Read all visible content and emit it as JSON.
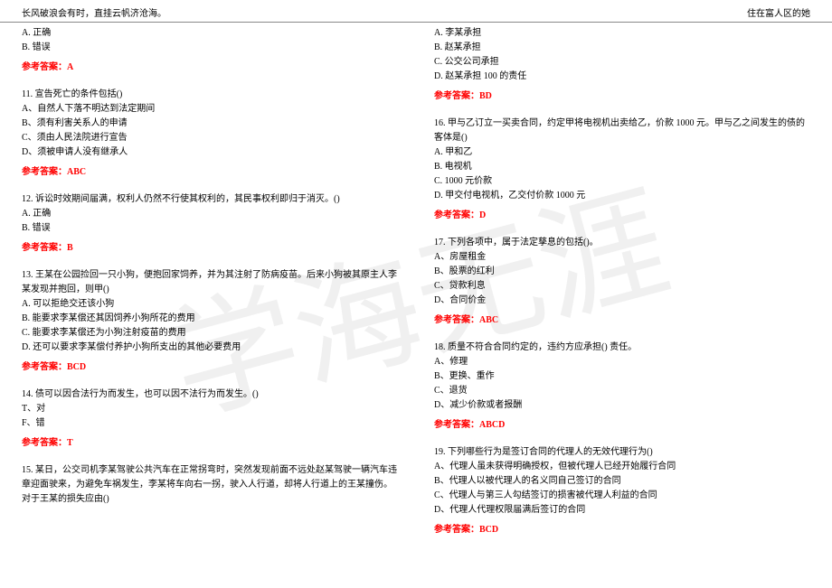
{
  "header": {
    "left": "长风破浪会有时，直挂云帆济沧海。",
    "right": "住在富人区的她"
  },
  "watermark": "学海无涯",
  "colors": {
    "answer": "#ff0000",
    "text": "#000000",
    "watermark": "#f0f0f0",
    "divider": "#888888",
    "background": "#ffffff"
  },
  "left_col": [
    {
      "opts": [
        "A. 正确",
        "B. 错误"
      ],
      "answer": "参考答案：A"
    },
    {
      "text": "11. 宣告死亡的条件包括()",
      "opts": [
        "A、自然人下落不明达到法定期间",
        "B、须有利害关系人的申请",
        "C、须由人民法院进行宣告",
        "D、须被申请人没有继承人"
      ],
      "answer": "参考答案：ABC"
    },
    {
      "text": "12. 诉讼时效期间届满，权利人仍然不行使其权利的，其民事权利即归于消灭。()",
      "opts": [
        "A. 正确",
        "B. 错误"
      ],
      "answer": "参考答案：B"
    },
    {
      "text": "13. 王某在公园捡回一只小狗，便抱回家饲养，并为其注射了防病疫苗。后来小狗被其原主人李某发现并抱回，则甲()",
      "opts": [
        "A. 可以拒绝交还该小狗",
        "B. 能要求李某偿还其因饲养小狗所花的费用",
        "C. 能要求李某偿还为小狗注射疫苗的费用",
        "D. 还可以要求李某偿付养护小狗所支出的其他必要费用"
      ],
      "answer": "参考答案：BCD"
    },
    {
      "text": "14. 债可以因合法行为而发生，也可以因不法行为而发生。()",
      "opts": [
        "T、对",
        "F、错"
      ],
      "answer": "参考答案：T"
    },
    {
      "text": "15. 某日，公交司机李某驾驶公共汽车在正常拐弯时，突然发现前面不远处赵某驾驶一辆汽车违章迎面驶来，为避免车祸发生，李某将车向右一拐，驶入人行道，却将人行道上的王某撞伤。对于王某的损失应由()"
    }
  ],
  "right_col": [
    {
      "opts": [
        "A. 李某承担",
        "B. 赵某承担",
        "C. 公交公司承担",
        "D. 赵某承担 100 的责任"
      ],
      "answer": "参考答案：BD"
    },
    {
      "text": "16. 甲与乙订立一买卖合同，约定甲将电视机出卖给乙，价款 1000 元。甲与乙之间发生的债的客体是()",
      "opts": [
        "A. 甲和乙",
        "B. 电视机",
        "C. 1000 元价款",
        "D. 甲交付电视机，乙交付价款 1000 元"
      ],
      "answer": "参考答案：D"
    },
    {
      "text": "17. 下列各项中，属于法定孳息的包括()。",
      "opts": [
        "A、房屋租金",
        "B、股票的红利",
        "C、贷款利息",
        "D、合同价金"
      ],
      "answer": "参考答案：ABC"
    },
    {
      "text": "18. 质量不符合合同约定的，违约方应承担() 责任。",
      "opts": [
        "A、修理",
        "B、更换、重作",
        "C、退货",
        "D、减少价款或者报酬"
      ],
      "answer": "参考答案：ABCD"
    },
    {
      "text": "19. 下列哪些行为是签订合同的代理人的无效代理行为()",
      "opts": [
        "A、代理人虽未获得明确授权，但被代理人已经开始履行合同",
        "B、代理人以被代理人的名义同自己签订的合同",
        "C、代理人与第三人勾结签订的损害被代理人利益的合同",
        "D、代理人代理权限届满后签订的合同"
      ],
      "answer": "参考答案：BCD"
    }
  ]
}
